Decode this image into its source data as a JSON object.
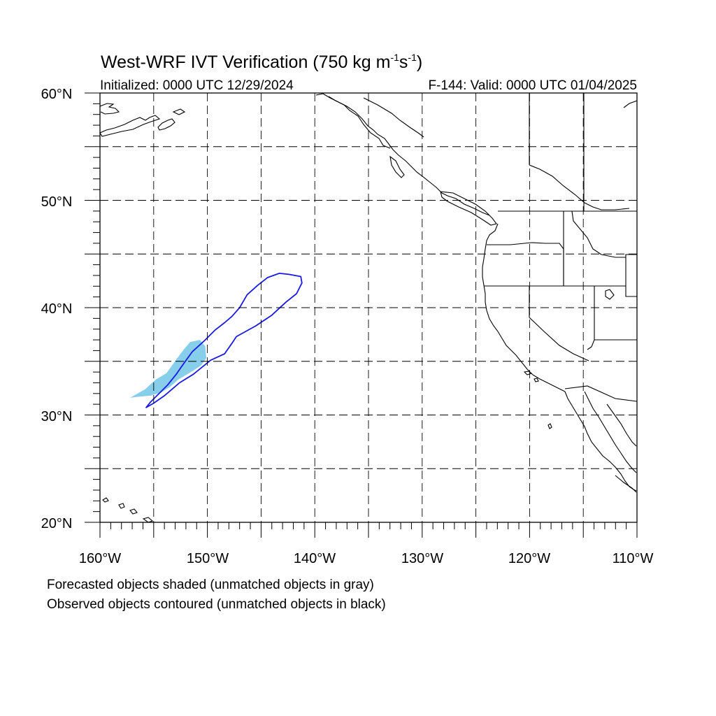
{
  "title": {
    "text": "West-WRF IVT Verification (750 kg m",
    "sup1": "-1",
    "mid": "s",
    "sup2": "-1",
    "end": ")"
  },
  "subtitle_left": "Initialized: 0000 UTC 12/29/2024",
  "subtitle_right": "F-144: Valid: 0000 UTC 01/04/2025",
  "lat_labels": [
    "60°N",
    "50°N",
    "40°N",
    "30°N",
    "20°N"
  ],
  "lon_labels": [
    "160°W",
    "150°W",
    "140°W",
    "130°W",
    "120°W",
    "110°W"
  ],
  "legend_notes": [
    "Forecasted objects shaded (unmatched objects in gray)",
    "Observed objects contoured (unmatched objects in black)"
  ],
  "map": {
    "lon_range": [
      -160,
      -110
    ],
    "lat_range": [
      20,
      60
    ],
    "grid_lon": [
      -155,
      -150,
      -145,
      -140,
      -135,
      -130,
      -125,
      -120,
      -115
    ],
    "grid_lat": [
      25,
      30,
      35,
      40,
      45,
      50,
      55
    ],
    "colors": {
      "forecast_fill": "#87ceeb",
      "observed_contour": "#1a1ae6",
      "coastline": "#000000",
      "grid": "#000000"
    },
    "forecast_object": [
      [
        -157.2,
        31.6
      ],
      [
        -155.8,
        32.4
      ],
      [
        -154.8,
        33.3
      ],
      [
        -153.8,
        33.9
      ],
      [
        -153.3,
        34.6
      ],
      [
        -152.8,
        35.3
      ],
      [
        -152.2,
        36.1
      ],
      [
        -151.6,
        36.8
      ],
      [
        -150.7,
        37.0
      ],
      [
        -150.2,
        36.4
      ],
      [
        -150.1,
        35.3
      ],
      [
        -150.6,
        34.6
      ],
      [
        -151.7,
        33.9
      ],
      [
        -152.7,
        33.3
      ],
      [
        -153.5,
        32.6
      ],
      [
        -154.3,
        32.1
      ],
      [
        -155.3,
        31.8
      ],
      [
        -156.4,
        31.7
      ]
    ],
    "observed_object": [
      [
        -155.7,
        30.7
      ],
      [
        -155.3,
        31.2
      ],
      [
        -154.7,
        31.8
      ],
      [
        -153.7,
        32.8
      ],
      [
        -152.9,
        33.8
      ],
      [
        -152.2,
        34.8
      ],
      [
        -151.4,
        35.9
      ],
      [
        -150.3,
        36.9
      ],
      [
        -149.3,
        37.9
      ],
      [
        -148.4,
        38.6
      ],
      [
        -147.7,
        39.2
      ],
      [
        -147.0,
        40.0
      ],
      [
        -146.3,
        41.2
      ],
      [
        -145.3,
        42.1
      ],
      [
        -144.4,
        42.8
      ],
      [
        -143.3,
        43.2
      ],
      [
        -142.4,
        43.1
      ],
      [
        -141.3,
        42.9
      ],
      [
        -141.2,
        42.3
      ],
      [
        -141.7,
        41.3
      ],
      [
        -142.7,
        40.5
      ],
      [
        -144.0,
        39.3
      ],
      [
        -145.5,
        38.3
      ],
      [
        -147.3,
        37.3
      ],
      [
        -147.7,
        36.7
      ],
      [
        -148.4,
        35.7
      ],
      [
        -149.7,
        35.1
      ],
      [
        -151.3,
        33.8
      ],
      [
        -152.6,
        33.0
      ],
      [
        -154.0,
        31.8
      ],
      [
        -155.0,
        31.1
      ]
    ]
  }
}
